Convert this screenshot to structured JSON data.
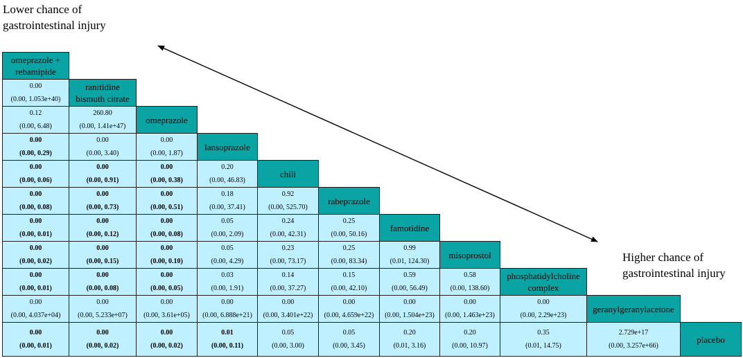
{
  "labels": {
    "lower": [
      "Lower chance of",
      "gastrointestinal injury"
    ],
    "higher": [
      "Higher chance of",
      "gastrointestinal injury"
    ]
  },
  "colors": {
    "treatment_cell": "#0aa4a4",
    "value_cell": "#bff0ff",
    "border": "#1f1f1f"
  },
  "treatments": [
    [
      "omeprazole +",
      "rebamipide"
    ],
    [
      "ranitidine",
      "bismuth citrate"
    ],
    [
      "omeprazole"
    ],
    [
      "lansoprazole"
    ],
    [
      "chili"
    ],
    [
      "rabeprazole"
    ],
    [
      "famotidine"
    ],
    [
      "misoprostol"
    ],
    [
      "phosphatidylcholine",
      "complex"
    ],
    [
      "geranylgeranylacetone"
    ],
    [
      "placebo"
    ]
  ],
  "comparisons": [
    [
      {
        "est": "0.00",
        "ci": "(0.00, 1.053e+40)",
        "sig": false
      }
    ],
    [
      {
        "est": "0.12",
        "ci": "(0.00, 6.48)",
        "sig": false
      },
      {
        "est": "260.80",
        "ci": "(0.00, 1.41e+47)",
        "sig": false
      }
    ],
    [
      {
        "est": "0.00",
        "ci": "(0.00, 0.29)",
        "sig": true
      },
      {
        "est": "0.00",
        "ci": "(0.00, 3.40)",
        "sig": false
      },
      {
        "est": "0.00",
        "ci": "(0.00, 1.87)",
        "sig": false
      }
    ],
    [
      {
        "est": "0.00",
        "ci": "(0.00, 0.06)",
        "sig": true
      },
      {
        "est": "0.00",
        "ci": "(0.00, 0.91)",
        "sig": true
      },
      {
        "est": "0.00",
        "ci": "(0.00, 0.38)",
        "sig": true
      },
      {
        "est": "0.20",
        "ci": "(0.00, 46.83)",
        "sig": false
      }
    ],
    [
      {
        "est": "0.00",
        "ci": "(0.00, 0.08)",
        "sig": true
      },
      {
        "est": "0.00",
        "ci": "(0.00, 0.73)",
        "sig": true
      },
      {
        "est": "0.00",
        "ci": "(0.00, 0.51)",
        "sig": true
      },
      {
        "est": "0.18",
        "ci": "(0.00, 37.41)",
        "sig": false
      },
      {
        "est": "0.92",
        "ci": "(0.00, 525.70)",
        "sig": false
      }
    ],
    [
      {
        "est": "0.00",
        "ci": "(0.00, 0.01)",
        "sig": true
      },
      {
        "est": "0.00",
        "ci": "(0.00, 0.12)",
        "sig": true
      },
      {
        "est": "0.00",
        "ci": "(0.00, 0.08)",
        "sig": true
      },
      {
        "est": "0.05",
        "ci": "(0.00, 2.09)",
        "sig": false
      },
      {
        "est": "0.24",
        "ci": "(0.00, 42.31)",
        "sig": false
      },
      {
        "est": "0.25",
        "ci": "(0.00, 50.16)",
        "sig": false
      }
    ],
    [
      {
        "est": "0.00",
        "ci": "(0.00, 0.02)",
        "sig": true
      },
      {
        "est": "0.00",
        "ci": "(0.00, 0.15)",
        "sig": true
      },
      {
        "est": "0.00",
        "ci": "(0.00, 0.10)",
        "sig": true
      },
      {
        "est": "0.05",
        "ci": "(0.00, 4.29)",
        "sig": false
      },
      {
        "est": "0.23",
        "ci": "(0.00, 73.17)",
        "sig": false
      },
      {
        "est": "0.25",
        "ci": "(0.00, 83.34)",
        "sig": false
      },
      {
        "est": "0.99",
        "ci": "(0.01, 124.30)",
        "sig": false
      }
    ],
    [
      {
        "est": "0.00",
        "ci": "(0.00, 0.01)",
        "sig": true
      },
      {
        "est": "0.00",
        "ci": "(0.00, 0.08)",
        "sig": true
      },
      {
        "est": "0.00",
        "ci": "(0.00, 0.05)",
        "sig": true
      },
      {
        "est": "0.03",
        "ci": "(0.00, 1.91)",
        "sig": false
      },
      {
        "est": "0.14",
        "ci": "(0.00, 37.27)",
        "sig": false
      },
      {
        "est": "0.15",
        "ci": "(0.00, 42.10)",
        "sig": false
      },
      {
        "est": "0.59",
        "ci": "(0.00, 56.49)",
        "sig": false
      },
      {
        "est": "0.58",
        "ci": "(0.00, 138.60)",
        "sig": false
      }
    ],
    [
      {
        "est": "0.00",
        "ci": "(0.00, 4.037e+04)",
        "sig": false
      },
      {
        "est": "0.00",
        "ci": "(0.00, 5.233e+07)",
        "sig": false
      },
      {
        "est": "0.00",
        "ci": "(0.00, 3.61e+05)",
        "sig": false
      },
      {
        "est": "0.00",
        "ci": "(0.00, 6.888e+21)",
        "sig": false
      },
      {
        "est": "0.00",
        "ci": "(0.00, 3.401e+22)",
        "sig": false
      },
      {
        "est": "0.00",
        "ci": "(0.00, 4.659e+22)",
        "sig": false
      },
      {
        "est": "0.00",
        "ci": "(0.00, 1.504e+23)",
        "sig": false
      },
      {
        "est": "0.00",
        "ci": "(0.00, 1.463e+23)",
        "sig": false
      },
      {
        "est": "0.00",
        "ci": "(0.00, 2.29e+23)",
        "sig": false
      }
    ],
    [
      {
        "est": "0.00",
        "ci": "(0.00, 0.01)",
        "sig": true
      },
      {
        "est": "0.00",
        "ci": "(0.00, 0.02)",
        "sig": true
      },
      {
        "est": "0.00",
        "ci": "(0.00, 0.02)",
        "sig": true
      },
      {
        "est": "0.01",
        "ci": "(0.00, 0.11)",
        "sig": true
      },
      {
        "est": "0.05",
        "ci": "(0.00, 3.00)",
        "sig": false
      },
      {
        "est": "0.05",
        "ci": "(0.00, 3.45)",
        "sig": false
      },
      {
        "est": "0.20",
        "ci": "(0.01, 3.16)",
        "sig": false
      },
      {
        "est": "0.20",
        "ci": "(0.00, 10.97)",
        "sig": false
      },
      {
        "est": "0.35",
        "ci": "(0.01, 14.75)",
        "sig": false
      },
      {
        "est": "2.729e+17",
        "ci": "(0.00, 3.257e+66)",
        "sig": false
      }
    ]
  ]
}
